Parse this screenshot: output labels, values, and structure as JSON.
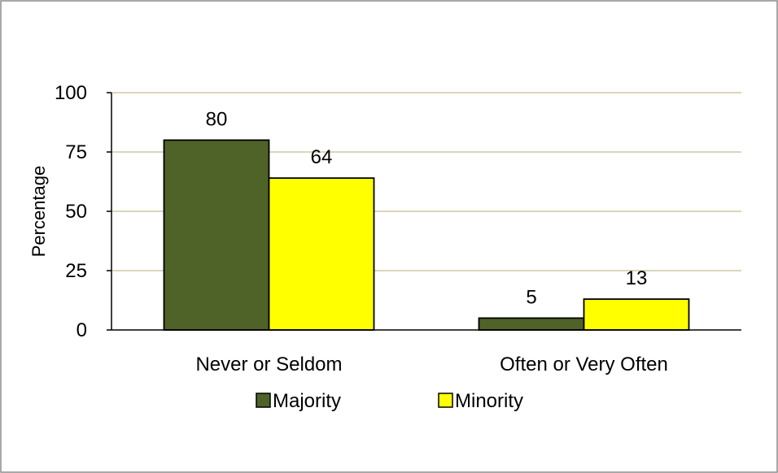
{
  "chart_data": {
    "type": "bar",
    "title": "",
    "xlabel": "",
    "ylabel": "Percentage",
    "categories": [
      "Never or Seldom",
      "Often or Very Often"
    ],
    "series": [
      {
        "name": "Majority",
        "values": [
          80,
          5
        ],
        "color": "#4f6228"
      },
      {
        "name": "Minority",
        "values": [
          64,
          13
        ],
        "color": "#ffff00"
      }
    ],
    "ylim": [
      0,
      100
    ],
    "yticks": [
      0,
      25,
      50,
      75,
      100
    ],
    "ytick_labels": [
      "0",
      "25",
      "50",
      "75",
      "100"
    ],
    "grid": true,
    "grid_color": "#c4bd97",
    "bar_outline_color": "#000000",
    "legend": "bottom",
    "data_labels": true
  }
}
